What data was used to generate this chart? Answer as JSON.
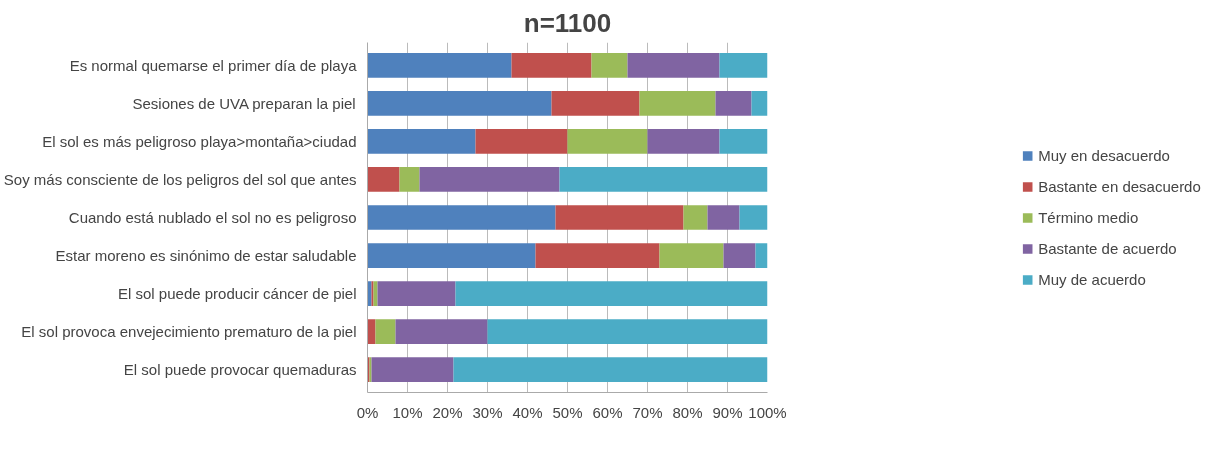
{
  "chart_data": {
    "type": "bar",
    "orientation": "horizontal",
    "stacked": true,
    "title": "n=1100",
    "categories": [
      "Es normal quemarse el primer día de playa",
      "Sesiones de UVA preparan la piel",
      "El sol es más peligroso playa>montaña>ciudad",
      "Soy más consciente de los peligros del sol que antes",
      "Cuando está nublado el sol no es peligroso",
      "Estar moreno es sinónimo de estar saludable",
      "El sol puede producir cáncer de piel",
      "El sol provoca envejecimiento prematuro de la piel",
      "El sol puede provocar quemaduras"
    ],
    "series": [
      {
        "name": "Muy en desacuerdo",
        "color": "#4f81bd",
        "values": [
          36,
          46,
          27,
          0,
          47,
          42,
          1,
          0,
          0
        ]
      },
      {
        "name": "Bastante en desacuerdo",
        "color": "#c0504d",
        "values": [
          20,
          22,
          23,
          8,
          32,
          31,
          0.5,
          2,
          0.5
        ]
      },
      {
        "name": "Término medio",
        "color": "#9bbb59",
        "values": [
          9,
          19,
          20,
          5,
          6,
          16,
          1,
          5,
          0.5
        ]
      },
      {
        "name": "Bastante de acuerdo",
        "color": "#8064a2",
        "values": [
          23,
          9,
          18,
          35,
          8,
          8,
          19.5,
          23,
          20.5
        ]
      },
      {
        "name": "Muy de acuerdo",
        "color": "#4bacc6",
        "values": [
          12,
          4,
          12,
          52,
          7,
          3,
          78,
          70,
          78.5
        ]
      }
    ],
    "xlim": [
      0,
      100
    ],
    "xticks": [
      {
        "value": 0,
        "label": "0%"
      },
      {
        "value": 10,
        "label": "10%"
      },
      {
        "value": 20,
        "label": "20%"
      },
      {
        "value": 30,
        "label": "30%"
      },
      {
        "value": 40,
        "label": "40%"
      },
      {
        "value": 50,
        "label": "50%"
      },
      {
        "value": 60,
        "label": "60%"
      },
      {
        "value": 70,
        "label": "70%"
      },
      {
        "value": 80,
        "label": "80%"
      },
      {
        "value": 90,
        "label": "90%"
      },
      {
        "value": 100,
        "label": "100%"
      }
    ],
    "grid": "x",
    "legend": "right"
  }
}
